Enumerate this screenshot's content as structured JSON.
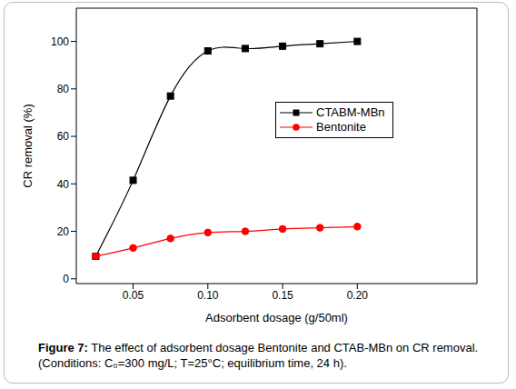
{
  "chart_data": {
    "type": "line",
    "caption": "Figure 7: The effect of adsorbent dosage Bentonite and CTAB-MBn on CR removal. (Conditions: C₀=300 mg/L; T=25°C; equilibrium time, 24 h).",
    "x_label": "Adsorbent dosage (g/50ml)",
    "y_label": "CR removal (%)",
    "x": [
      0.025,
      0.05,
      0.075,
      0.1,
      0.125,
      0.15,
      0.175,
      0.2
    ],
    "series": [
      {
        "name": "CTABM-MBn",
        "color": "#000000",
        "marker": "square",
        "line_style": "solid",
        "values": [
          9.5,
          41.5,
          77,
          96,
          97,
          98,
          99,
          100
        ]
      },
      {
        "name": "Bentonite",
        "color": "#ff0000",
        "marker": "circle",
        "line_style": "solid",
        "values": [
          9.5,
          13,
          17,
          19.5,
          20,
          21,
          21.5,
          22
        ]
      }
    ],
    "xlim": [
      0.012,
      0.28
    ],
    "xticks": [
      0.05,
      {
        "value": 0.1,
        "label": "0.10"
      },
      0.15,
      {
        "value": 0.2,
        "label": "0.20"
      }
    ],
    "ylim": [
      -2,
      114
    ],
    "yticks": [
      0,
      20,
      40,
      60,
      80,
      100
    ],
    "grid": false,
    "legend": "upper right"
  }
}
